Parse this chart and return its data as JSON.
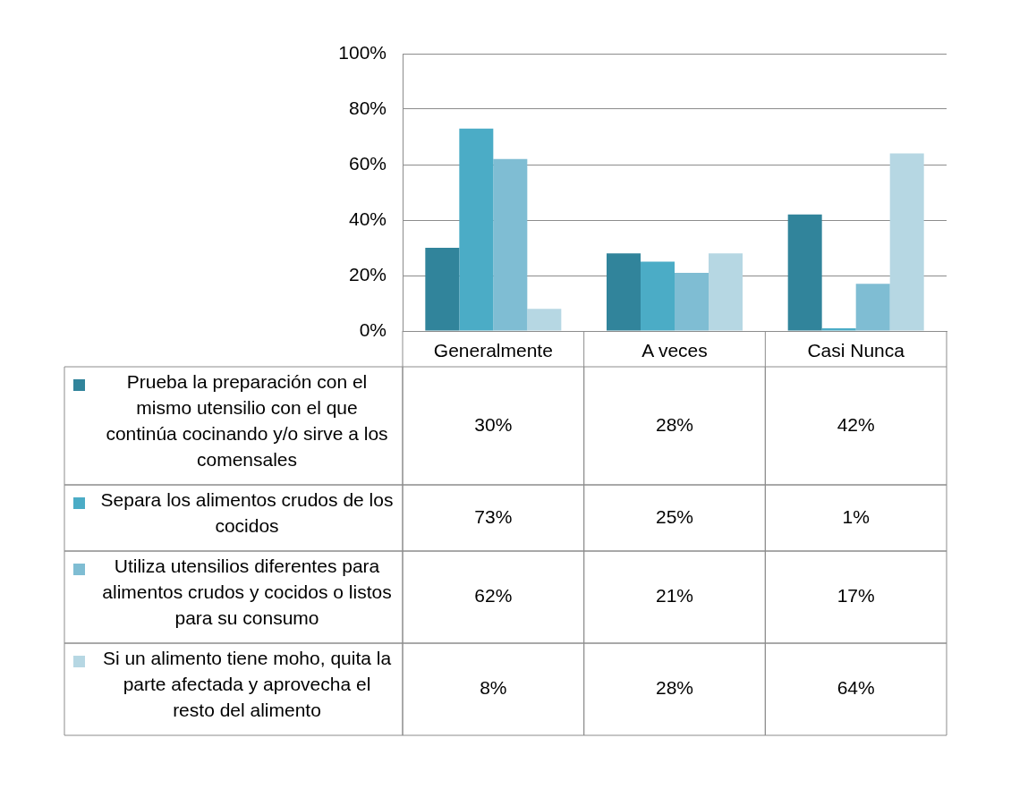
{
  "chart_data": {
    "type": "bar",
    "categories": [
      "Generalmente",
      "A veces",
      "Casi Nunca"
    ],
    "series": [
      {
        "name": "Prueba la preparación con el mismo utensilio con el que continúa cocinando y/o sirve a los comensales",
        "color": "#31849b",
        "values": [
          30,
          28,
          42
        ],
        "value_labels": [
          "30%",
          "28%",
          "42%"
        ]
      },
      {
        "name": "Separa los alimentos crudos de los cocidos",
        "color": "#4bacc6",
        "values": [
          73,
          25,
          1
        ],
        "value_labels": [
          "73%",
          "25%",
          "1%"
        ]
      },
      {
        "name": "Utiliza utensilios diferentes para alimentos crudos y cocidos o listos para su consumo",
        "color": "#7fbdd3",
        "values": [
          62,
          21,
          17
        ],
        "value_labels": [
          "62%",
          "21%",
          "17%"
        ]
      },
      {
        "name": "Si un alimento tiene moho, quita la parte afectada y aprovecha el resto del alimento",
        "color": "#b6d7e3",
        "values": [
          8,
          28,
          64
        ],
        "value_labels": [
          "8%",
          "28%",
          "64%"
        ]
      }
    ],
    "ylim": [
      0,
      100
    ],
    "yticks": [
      {
        "value": 0,
        "label": "0%"
      },
      {
        "value": 20,
        "label": "20%"
      },
      {
        "value": 40,
        "label": "40%"
      },
      {
        "value": 60,
        "label": "60%"
      },
      {
        "value": 80,
        "label": "80%"
      },
      {
        "value": 100,
        "label": "100%"
      }
    ],
    "grid": "y",
    "legend": "bottom"
  }
}
